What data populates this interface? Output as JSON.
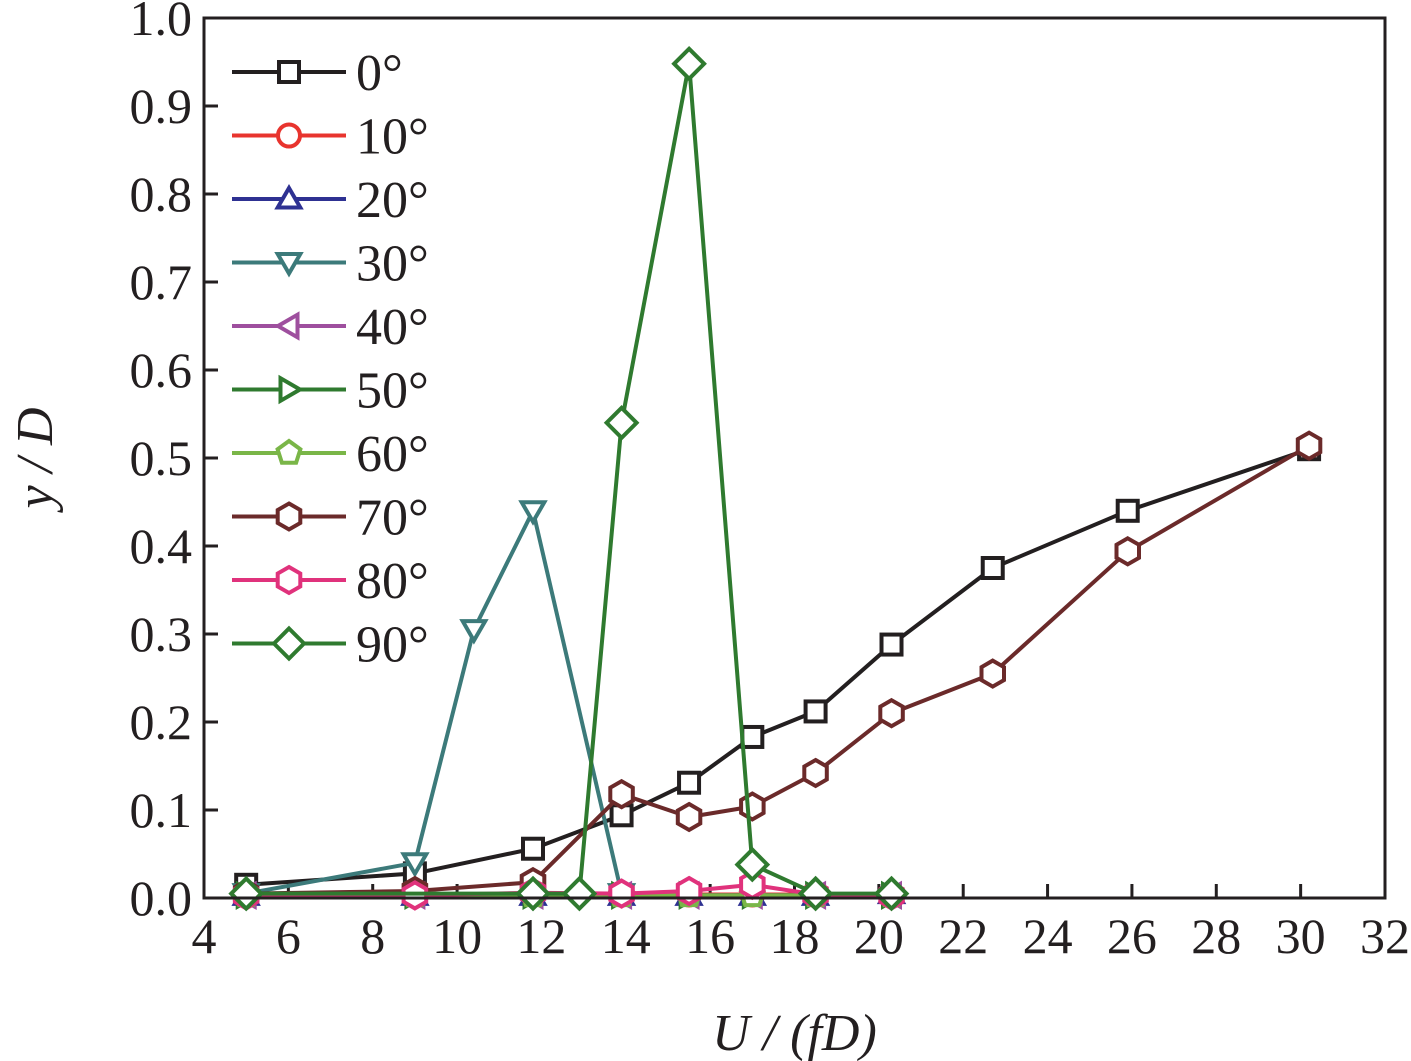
{
  "chart_data": {
    "type": "line",
    "xlabel": "U / (fD)",
    "ylabel": "y / D",
    "xlim": [
      4,
      32
    ],
    "ylim": [
      0.0,
      1.0
    ],
    "x_ticks": [
      "4",
      "6",
      "8",
      "10",
      "12",
      "14",
      "16",
      "18",
      "20",
      "22",
      "24",
      "26",
      "28",
      "30",
      "32"
    ],
    "y_ticks": [
      "0.0",
      "0.1",
      "0.2",
      "0.3",
      "0.4",
      "0.5",
      "0.6",
      "0.7",
      "0.8",
      "0.9",
      "1.0"
    ],
    "grid": false,
    "legend_position": "top-left",
    "series": [
      {
        "name": "0°",
        "color": "#231f20",
        "marker": "square",
        "x": [
          5.0,
          9.0,
          11.8,
          13.9,
          15.5,
          17.0,
          18.5,
          20.3,
          22.7,
          25.9,
          30.2
        ],
        "y": [
          0.015,
          0.028,
          0.056,
          0.094,
          0.131,
          0.183,
          0.212,
          0.288,
          0.375,
          0.44,
          0.51
        ]
      },
      {
        "name": "10°",
        "color": "#e8342e",
        "marker": "circle",
        "x": [
          5.0,
          9.0,
          11.8,
          13.9,
          15.5,
          17.0,
          18.5,
          20.3
        ],
        "y": [
          0.003,
          0.003,
          0.004,
          0.004,
          0.004,
          0.004,
          0.004,
          0.004
        ]
      },
      {
        "name": "20°",
        "color": "#2e3192",
        "marker": "triangle-up",
        "x": [
          5.0,
          9.0,
          11.8,
          13.9,
          15.5,
          17.0,
          18.5,
          20.3
        ],
        "y": [
          0.003,
          0.003,
          0.003,
          0.003,
          0.003,
          0.003,
          0.003,
          0.005
        ]
      },
      {
        "name": "30°",
        "color": "#3c7a7a",
        "marker": "triangle-down",
        "x": [
          5.0,
          9.0,
          10.4,
          11.8,
          13.9
        ],
        "y": [
          0.005,
          0.04,
          0.305,
          0.44,
          0.005
        ]
      },
      {
        "name": "40°",
        "color": "#9e4f9e",
        "marker": "triangle-left",
        "x": [
          5.0,
          9.0,
          11.8,
          13.9,
          15.5,
          17.0,
          18.5,
          20.3
        ],
        "y": [
          0.003,
          0.003,
          0.003,
          0.003,
          0.003,
          0.003,
          0.003,
          0.003
        ]
      },
      {
        "name": "50°",
        "color": "#2f7a2f",
        "marker": "triangle-right",
        "x": [
          5.0,
          9.0,
          11.8,
          13.9,
          15.5,
          17.0,
          18.5,
          20.3
        ],
        "y": [
          0.003,
          0.003,
          0.003,
          0.003,
          0.003,
          0.003,
          0.003,
          0.003
        ]
      },
      {
        "name": "60°",
        "color": "#7ab648",
        "marker": "pentagon",
        "x": [
          5.0,
          9.0,
          11.8,
          13.9,
          15.5,
          17.0,
          18.5,
          20.3
        ],
        "y": [
          0.003,
          0.003,
          0.003,
          0.003,
          0.003,
          0.003,
          0.003,
          0.003
        ]
      },
      {
        "name": "70°",
        "color": "#6b2a2a",
        "marker": "hexagon",
        "x": [
          5.0,
          9.0,
          11.8,
          13.9,
          15.5,
          17.0,
          18.5,
          20.3,
          22.7,
          25.9,
          30.2
        ],
        "y": [
          0.005,
          0.008,
          0.018,
          0.118,
          0.092,
          0.104,
          0.142,
          0.21,
          0.255,
          0.394,
          0.514
        ]
      },
      {
        "name": "80°",
        "color": "#e0327c",
        "marker": "hexagon",
        "x": [
          5.0,
          9.0,
          11.8,
          13.9,
          15.5,
          17.0,
          18.5,
          20.3
        ],
        "y": [
          0.003,
          0.003,
          0.006,
          0.005,
          0.008,
          0.015,
          0.004,
          0.003
        ]
      },
      {
        "name": "90°",
        "color": "#2f7a2f",
        "marker": "diamond",
        "x": [
          5.0,
          11.8,
          12.9,
          13.9,
          15.5,
          17.0,
          18.5,
          20.3
        ],
        "y": [
          0.005,
          0.005,
          0.005,
          0.54,
          0.948,
          0.038,
          0.005,
          0.005
        ]
      }
    ]
  }
}
